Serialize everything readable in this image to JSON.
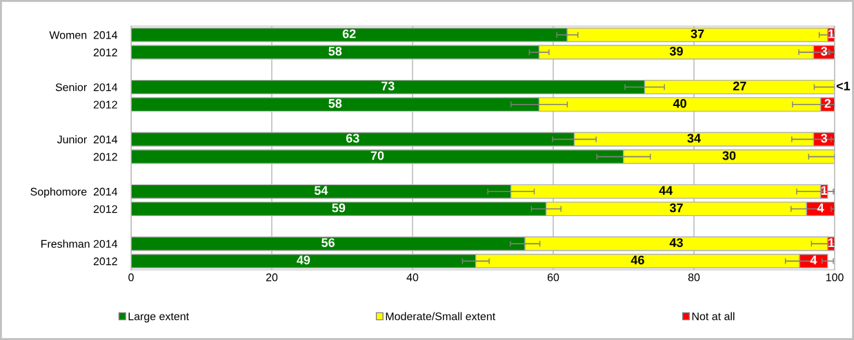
{
  "chart_data": {
    "type": "bar",
    "orientation": "horizontal",
    "stacked": true,
    "categories": [
      "Women  2014",
      "2012",
      null,
      "Senior  2014",
      "2012",
      null,
      "Junior  2014",
      "2012",
      null,
      "Sophomore  2014",
      "2012",
      null,
      "Freshman 2014",
      "2012"
    ],
    "series": [
      {
        "name": "Large extent",
        "color": "#008000",
        "values": [
          62,
          58,
          null,
          73,
          58,
          null,
          63,
          70,
          null,
          54,
          59,
          null,
          56,
          49
        ],
        "errors": [
          1.5,
          1.4,
          null,
          2.8,
          4,
          null,
          3.1,
          3.8,
          null,
          3.3,
          2.1,
          null,
          2.1,
          1.9
        ],
        "value_labels": [
          "62",
          "58",
          null,
          "73",
          "58",
          null,
          "63",
          "70",
          null,
          "54",
          "59",
          null,
          "56",
          "49"
        ]
      },
      {
        "name": "Moderate/Small extent",
        "color": "#ffff00",
        "values": [
          37,
          39,
          null,
          27,
          40,
          null,
          34,
          30,
          null,
          44,
          37,
          null,
          43,
          46
        ],
        "errors": [
          1.2,
          2.1,
          null,
          [
            97.1,
            100
          ],
          [
            94,
            100
          ],
          null,
          [
            93.9,
            100
          ],
          [
            96.3,
            100
          ],
          null,
          [
            94.6,
            100
          ],
          2.2,
          null,
          [
            96.7,
            100
          ],
          2
        ],
        "value_labels": [
          "37",
          "39",
          null,
          "27",
          "40",
          null,
          "34",
          "30",
          null,
          "44",
          "37",
          null,
          "43",
          "46"
        ]
      },
      {
        "name": "Not at all",
        "color": "#ff0000",
        "values": [
          1,
          3,
          null,
          0,
          2,
          null,
          3,
          null,
          null,
          1,
          4,
          null,
          1,
          4
        ],
        "errors": [
          [
            99.5,
            100
          ],
          [
            99.3,
            100
          ],
          null,
          null,
          null,
          null,
          [
            99.5,
            100
          ],
          null,
          null,
          0.8,
          [
            99.5,
            100
          ],
          null,
          [
            99.5,
            100
          ],
          0.8
        ],
        "value_labels": [
          "1",
          "3",
          null,
          "<1",
          "2",
          null,
          "3",
          null,
          null,
          "1",
          "4",
          null,
          "1",
          "4"
        ]
      }
    ],
    "xlim": [
      0,
      100
    ],
    "xticks": [
      0,
      20,
      40,
      60,
      80,
      100
    ],
    "grid": "x",
    "legend": "bottom"
  }
}
